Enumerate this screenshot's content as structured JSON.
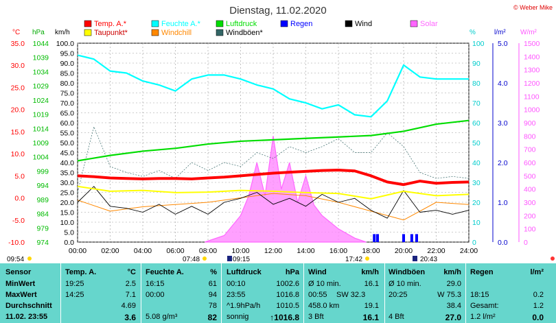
{
  "header": {
    "title": "Dienstag, 11.02.2020",
    "credit": "© Weber Mike"
  },
  "legend": [
    {
      "name": "Temp. A.*",
      "color": "#ff0000"
    },
    {
      "name": "Feuchte A.*",
      "color": "#00ffff"
    },
    {
      "name": "Luftdruck",
      "color": "#00dd00"
    },
    {
      "name": "Regen",
      "color": "#0000ff"
    },
    {
      "name": "Wind",
      "color": "#000000"
    },
    {
      "name": "Solar",
      "color": "#ff66ff"
    },
    {
      "name": "Taupunkt*",
      "color": "#ffff00"
    },
    {
      "name": "Windchill",
      "color": "#ff8800"
    },
    {
      "name": "Windböen*",
      "color": "#336666"
    }
  ],
  "axis_units": {
    "temp": "°C",
    "pressure": "hPa",
    "wind": "km/h",
    "humidity": "%",
    "rain": "l/m²",
    "solar": "W/m²"
  },
  "sun": {
    "sunrise_label": "07:48",
    "sunset_label": "17:42",
    "moonrise_label": "09:15",
    "moonset_label": "20:43",
    "left_time": "09:54"
  },
  "chart_data": {
    "type": "line",
    "title": "Dienstag, 11.02.2020",
    "x_labels": [
      "00:00",
      "02:00",
      "04:00",
      "06:00",
      "08:00",
      "10:00",
      "12:00",
      "14:00",
      "16:00",
      "18:00",
      "20:00",
      "22:00",
      "24:00"
    ],
    "axes": {
      "temp": {
        "ticks": [
          "35.0",
          "30.0",
          "25.0",
          "20.0",
          "15.0",
          "10.0",
          "5.0",
          "0.0",
          "-5.0",
          "-10.0"
        ],
        "range": [
          -10,
          35
        ]
      },
      "pressure": {
        "ticks": [
          "1044",
          "1039",
          "1034",
          "1029",
          "1024",
          "1019",
          "1014",
          "1009",
          "1004",
          "999",
          "994",
          "989",
          "984",
          "979",
          "974"
        ],
        "range": [
          974,
          1044
        ]
      },
      "wind": {
        "ticks": [
          "100.0",
          "95.0",
          "90.0",
          "85.0",
          "80.0",
          "75.0",
          "70.0",
          "65.0",
          "60.0",
          "55.0",
          "50.0",
          "45.0",
          "40.0",
          "35.0",
          "30.0",
          "25.0",
          "20.0",
          "15.0",
          "10.0",
          "5.0",
          "0.0"
        ],
        "range": [
          0,
          100
        ]
      },
      "humidity": {
        "ticks": [
          "100",
          "90",
          "80",
          "70",
          "60",
          "50",
          "40",
          "30",
          "20",
          "10",
          "0"
        ],
        "range": [
          0,
          100
        ]
      },
      "rain": {
        "ticks": [
          "5.0",
          "4.0",
          "3.0",
          "2.0",
          "1.0",
          "0.0"
        ],
        "range": [
          0,
          5
        ]
      },
      "solar": {
        "ticks": [
          "1500",
          "1400",
          "1300",
          "1200",
          "1100",
          "1000",
          "900",
          "800",
          "700",
          "600",
          "500",
          "400",
          "300",
          "200",
          "100",
          "0"
        ],
        "range": [
          0,
          1500
        ]
      }
    },
    "series": [
      {
        "name": "Temp. A.*",
        "axis": "temp",
        "x": [
          0,
          1,
          2,
          3,
          4,
          5,
          6,
          7,
          8,
          9,
          10,
          11,
          12,
          13,
          14,
          15,
          16,
          17,
          18,
          19,
          20,
          21,
          22,
          23,
          24
        ],
        "values": [
          5.0,
          4.8,
          4.5,
          4.4,
          4.3,
          4.4,
          4.4,
          4.3,
          4.5,
          4.7,
          5.0,
          5.3,
          5.6,
          5.8,
          6.0,
          6.2,
          6.3,
          6.1,
          5.0,
          3.6,
          3.0,
          3.8,
          3.3,
          3.5,
          3.6
        ]
      },
      {
        "name": "Feuchte A.*",
        "axis": "humidity",
        "x": [
          0,
          1,
          2,
          3,
          4,
          5,
          6,
          7,
          8,
          9,
          10,
          11,
          12,
          13,
          14,
          15,
          16,
          17,
          18,
          19,
          20,
          21,
          22,
          23,
          24
        ],
        "values": [
          94,
          92,
          86,
          85,
          81,
          79,
          76,
          82,
          84,
          84,
          82,
          79,
          77,
          72,
          70,
          67,
          69,
          64,
          63,
          71,
          89,
          83,
          82,
          82,
          82
        ]
      },
      {
        "name": "Luftdruck",
        "axis": "pressure",
        "x": [
          0,
          2,
          4,
          6,
          8,
          10,
          12,
          14,
          16,
          18,
          20,
          22,
          24
        ],
        "values": [
          1002.6,
          1004.5,
          1006,
          1007,
          1008.5,
          1009.5,
          1010,
          1010.5,
          1011,
          1011.5,
          1013,
          1015.5,
          1016.8
        ]
      },
      {
        "name": "Taupunkt*",
        "axis": "temp",
        "x": [
          0,
          2,
          4,
          6,
          8,
          10,
          12,
          14,
          16,
          18,
          20,
          22,
          24
        ],
        "values": [
          2.6,
          1.5,
          1.7,
          1.2,
          1.3,
          1.7,
          1.5,
          1.2,
          1.0,
          -0.2,
          1.5,
          0.5,
          0.8
        ]
      },
      {
        "name": "Windchill",
        "axis": "temp",
        "x": [
          0,
          2,
          4,
          6,
          8,
          10,
          12,
          14,
          16,
          18,
          20,
          22,
          24
        ],
        "values": [
          -0.5,
          -3,
          -2,
          -1.5,
          -1,
          0,
          1,
          0.5,
          -1,
          -3,
          -5,
          -1,
          -1.5
        ]
      },
      {
        "name": "Wind",
        "axis": "wind",
        "x": [
          0,
          1,
          2,
          3,
          4,
          5,
          6,
          7,
          8,
          9,
          10,
          11,
          12,
          13,
          14,
          15,
          16,
          17,
          18,
          19,
          20,
          21,
          22,
          23,
          24
        ],
        "values": [
          20,
          28,
          18,
          17,
          15,
          19,
          14,
          18,
          14,
          20,
          22,
          25,
          19,
          22,
          18,
          24,
          20,
          22,
          16,
          12,
          26,
          15,
          16,
          14,
          16
        ]
      },
      {
        "name": "Windböen*",
        "axis": "wind",
        "x": [
          0,
          1,
          2,
          3,
          4,
          5,
          6,
          7,
          8,
          9,
          10,
          11,
          12,
          13,
          14,
          15,
          16,
          17,
          18,
          19,
          20,
          21,
          22,
          23,
          24
        ],
        "values": [
          25,
          58,
          38,
          35,
          33,
          36,
          32,
          40,
          36,
          40,
          38,
          45,
          42,
          48,
          45,
          48,
          52,
          45,
          45,
          55,
          48,
          35,
          32,
          33,
          32
        ]
      },
      {
        "name": "Solar",
        "axis": "solar",
        "x": [
          7.8,
          9,
          10,
          10.5,
          11,
          11.5,
          12,
          12.5,
          13,
          13.5,
          14,
          14.5,
          15,
          16,
          17,
          17.7
        ],
        "values": [
          0,
          50,
          200,
          350,
          600,
          350,
          800,
          400,
          600,
          300,
          500,
          280,
          200,
          100,
          30,
          0
        ]
      },
      {
        "name": "Regen",
        "axis": "rain",
        "x": [
          18.2,
          18.4,
          20,
          20.5,
          20.8
        ],
        "values": [
          0.2,
          0.2,
          0.2,
          0.2,
          0.2
        ]
      }
    ]
  },
  "stats": {
    "headers": {
      "sensor": "Sensor",
      "temp": "Temp. A.",
      "temp_unit": "°C",
      "hum": "Feuchte A.",
      "hum_unit": "%",
      "press": "Luftdruck",
      "press_unit": "hPa",
      "wind": "Wind",
      "wind_unit": "km/h",
      "gust": "Windböen",
      "gust_unit": "km/h",
      "rain": "Regen",
      "rain_unit": "l/m²"
    },
    "rows": [
      {
        "label": "MinWert",
        "temp_t": "19:25",
        "temp_v": "2.5",
        "hum_t": "16:15",
        "hum_v": "61",
        "press_t": "00:10",
        "press_v": "1002.6",
        "wind_t": "Ø 10 min.",
        "wind_v": "16.1",
        "gust_t": "Ø 10 min.",
        "gust_v": "29.0",
        "rain_t": "",
        "rain_v": ""
      },
      {
        "label": "MaxWert",
        "temp_t": "14:25",
        "temp_v": "7.1",
        "hum_t": "00:00",
        "hum_v": "94",
        "press_t": "23:55",
        "press_v": "1016.8",
        "wind_t": "00:55",
        "wind_m": "SW 32.3",
        "wind_v": "",
        "gust_t": "20:25",
        "gust_v": "W 75.3",
        "rain_t": "18:15",
        "rain_v": "0.2"
      },
      {
        "label": "Durchschnitt",
        "temp_t": "",
        "temp_v": "4.69",
        "hum_t": "",
        "hum_v": "78",
        "press_t": "^1.9hPa/h",
        "press_v": "1010.5",
        "wind_t": "458.0 km",
        "wind_v": "19.1",
        "gust_t": "",
        "gust_v": "38.4",
        "rain_t": "Gesamt:",
        "rain_v": "1.2"
      },
      {
        "label": "11.02. 23:55",
        "temp_t": "",
        "temp_v": "3.6",
        "hum_t": "5.08 g/m³",
        "hum_v": "82",
        "press_t": "sonnig",
        "press_v": "↑1016.8",
        "wind_t": "3 Bft",
        "wind_v": "16.1",
        "gust_t": "4 Bft",
        "gust_v": "27.0",
        "rain_t": "1.2 l/m²",
        "rain_v": "0.0"
      }
    ]
  }
}
